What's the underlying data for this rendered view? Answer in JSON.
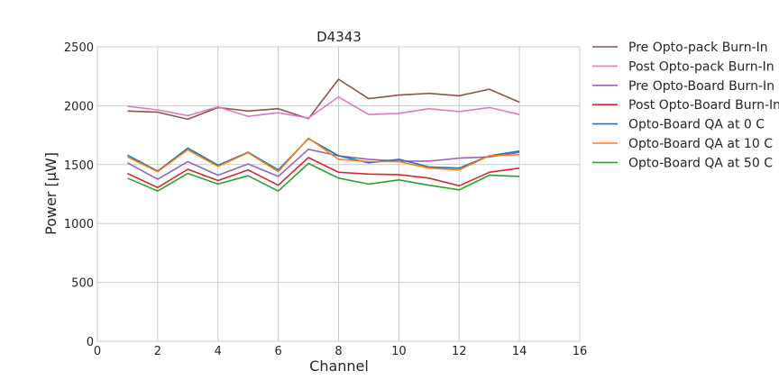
{
  "chart_data": {
    "type": "line",
    "title": "D4343",
    "xlabel": "Channel",
    "ylabel": "Power [μW]",
    "xlim": [
      0,
      16
    ],
    "ylim": [
      0,
      2500
    ],
    "xticks": [
      0,
      2,
      4,
      6,
      8,
      10,
      12,
      14,
      16
    ],
    "yticks": [
      0,
      500,
      1000,
      1500,
      2000,
      2500
    ],
    "grid": true,
    "legend_position": "outside-right",
    "x": [
      1,
      2,
      3,
      4,
      5,
      6,
      7,
      8,
      9,
      10,
      11,
      12,
      13,
      14
    ],
    "series": [
      {
        "name": "Pre Opto-pack Burn-In",
        "color": "#8c564b",
        "values": [
          1955,
          1945,
          1885,
          1985,
          1955,
          1975,
          1890,
          2225,
          2060,
          2090,
          2105,
          2085,
          2140,
          2030
        ]
      },
      {
        "name": "Post Opto-pack Burn-In",
        "color": "#e377c2",
        "values": [
          1995,
          1965,
          1915,
          1990,
          1910,
          1940,
          1895,
          2075,
          1925,
          1935,
          1975,
          1950,
          1985,
          1925
        ]
      },
      {
        "name": "Pre Opto-Board Burn-In",
        "color": "#9467bd",
        "values": [
          1515,
          1375,
          1525,
          1410,
          1505,
          1400,
          1630,
          1575,
          1545,
          1530,
          1530,
          1555,
          1565,
          1605
        ]
      },
      {
        "name": "Post Opto-Board Burn-In",
        "color": "#d62728",
        "values": [
          1425,
          1305,
          1460,
          1365,
          1455,
          1325,
          1560,
          1435,
          1420,
          1415,
          1385,
          1320,
          1435,
          1470
        ]
      },
      {
        "name": "Opto-Board QA at 0 C",
        "color": "#1f77b4",
        "values": [
          1580,
          1445,
          1640,
          1495,
          1605,
          1455,
          1720,
          1575,
          1515,
          1545,
          1480,
          1470,
          1575,
          1615
        ]
      },
      {
        "name": "Opto-Board QA at 10 C",
        "color": "#ff7f0e",
        "values": [
          1565,
          1440,
          1625,
          1485,
          1600,
          1440,
          1725,
          1545,
          1525,
          1525,
          1470,
          1455,
          1575,
          1585
        ]
      },
      {
        "name": "Opto-Board QA at 50 C",
        "color": "#2ca02c",
        "values": [
          1385,
          1275,
          1425,
          1335,
          1405,
          1275,
          1510,
          1385,
          1335,
          1370,
          1325,
          1285,
          1410,
          1400
        ]
      }
    ]
  }
}
